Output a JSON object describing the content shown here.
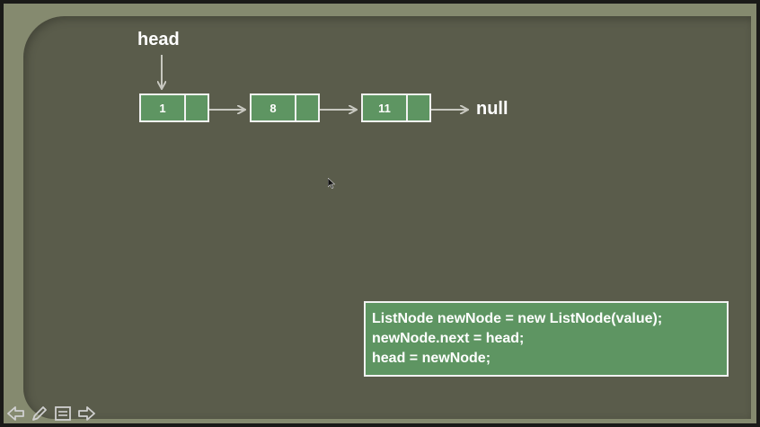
{
  "diagram": {
    "head_label": "head",
    "null_label": "null",
    "nodes": [
      {
        "value": "1"
      },
      {
        "value": "8"
      },
      {
        "value": "11"
      }
    ]
  },
  "code": {
    "lines": [
      "ListNode newNode = new ListNode(value);",
      "newNode.next = head;",
      "head = newNode;"
    ]
  },
  "controls": {
    "icons": [
      "arrow-left-icon",
      "pen-icon",
      "menu-icon",
      "arrow-right-icon"
    ]
  },
  "colors": {
    "node_fill": "#5e9562",
    "slide_bg": "#5a5c4b",
    "frame_bg": "#858a6f",
    "arrow": "#c8c8c0"
  }
}
